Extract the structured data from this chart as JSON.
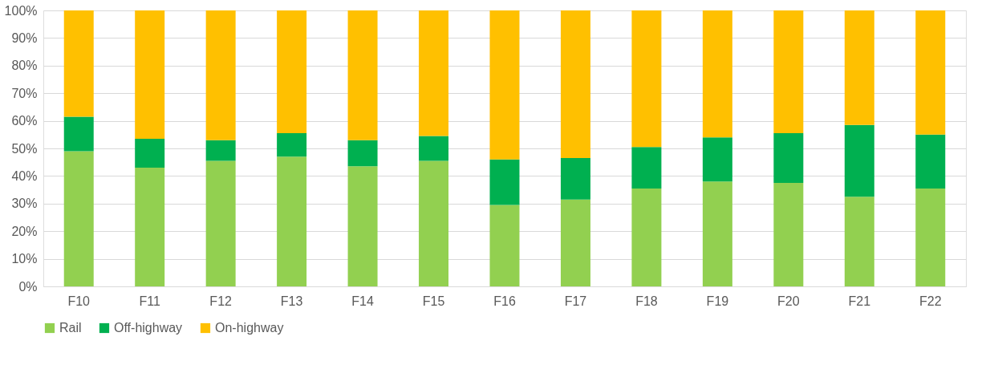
{
  "chart_data": {
    "type": "bar",
    "stacked": true,
    "categories": [
      "F10",
      "F11",
      "F12",
      "F13",
      "F14",
      "F15",
      "F16",
      "F17",
      "F18",
      "F19",
      "F20",
      "F21",
      "F22"
    ],
    "series": [
      {
        "name": "Rail",
        "color": "#92d050",
        "values": [
          49,
          43,
          45.5,
          47,
          43.5,
          45.5,
          29.5,
          31.5,
          35.5,
          38,
          37.5,
          32.5,
          35.5
        ]
      },
      {
        "name": "Off-highway",
        "color": "#00b050",
        "values": [
          12.5,
          10.5,
          7.5,
          8.5,
          9.5,
          9,
          16.5,
          15,
          15,
          16,
          18,
          26,
          19.5
        ]
      },
      {
        "name": "On-highway",
        "color": "#ffc000",
        "values": [
          38.5,
          46.5,
          47,
          44.5,
          47,
          45.5,
          54,
          53.5,
          49.5,
          46,
          44.5,
          41.5,
          45
        ]
      }
    ],
    "ylim": [
      0,
      100
    ],
    "yticks": [
      {
        "value": 0,
        "label": "0%"
      },
      {
        "value": 10,
        "label": "10%"
      },
      {
        "value": 20,
        "label": "20%"
      },
      {
        "value": 30,
        "label": "30%"
      },
      {
        "value": 40,
        "label": "40%"
      },
      {
        "value": 50,
        "label": "50%"
      },
      {
        "value": 60,
        "label": "60%"
      },
      {
        "value": 70,
        "label": "70%"
      },
      {
        "value": 80,
        "label": "80%"
      },
      {
        "value": 90,
        "label": "90%"
      },
      {
        "value": 100,
        "label": "100%"
      }
    ],
    "grid": "y",
    "legend": "bottom"
  }
}
